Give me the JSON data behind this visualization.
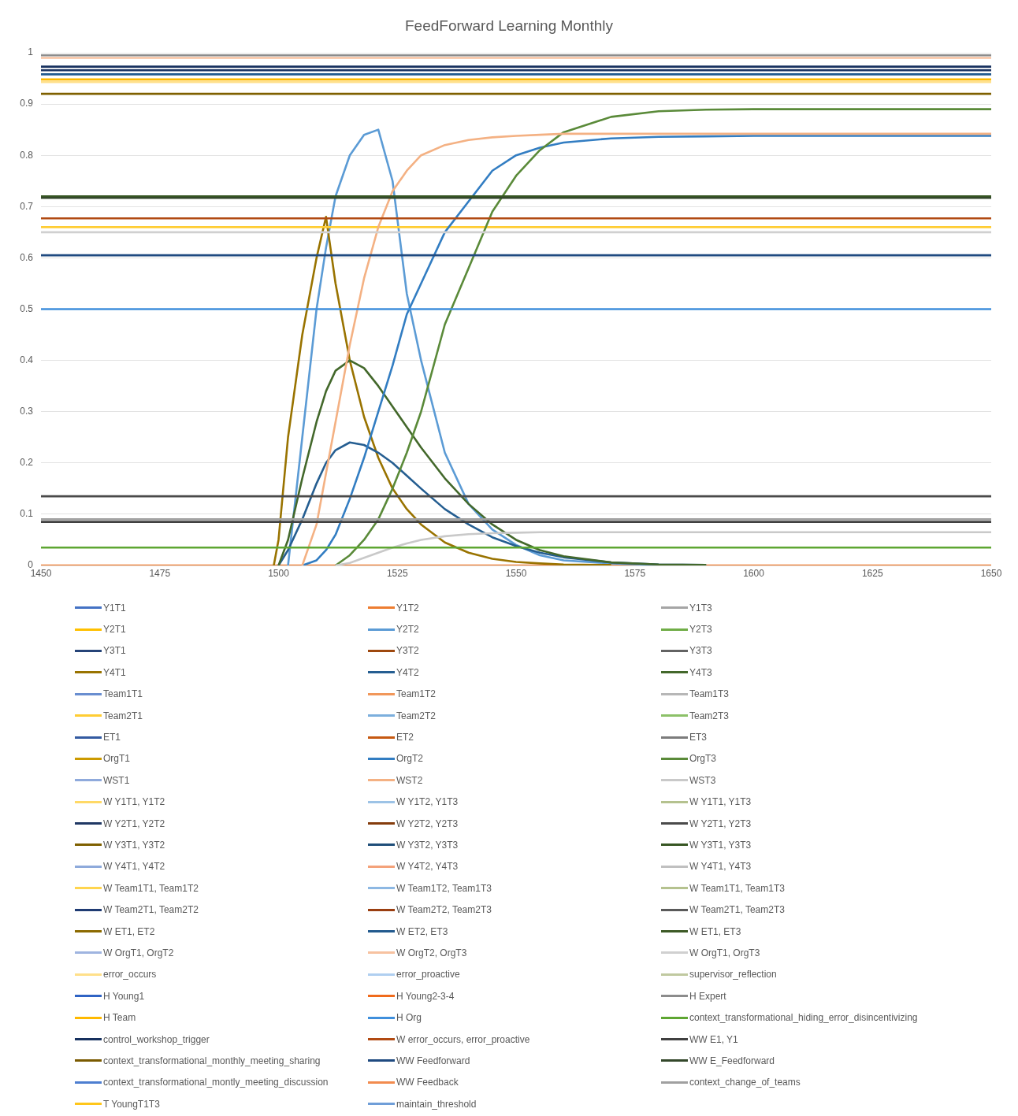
{
  "chart_data": {
    "type": "line",
    "title": "FeedForward Learning Monthly",
    "x": [
      1450,
      1499,
      1500,
      1502,
      1505,
      1508,
      1510,
      1512,
      1515,
      1518,
      1521,
      1524,
      1527,
      1530,
      1535,
      1540,
      1545,
      1550,
      1555,
      1560,
      1570,
      1580,
      1590,
      1600,
      1625,
      1650
    ],
    "xlim": [
      1450,
      1650
    ],
    "xticks": [
      1450,
      1475,
      1500,
      1525,
      1550,
      1575,
      1600,
      1625,
      1650
    ],
    "ylim": [
      0,
      1
    ],
    "yticks": [
      0,
      0.1,
      0.2,
      0.3,
      0.4,
      0.5,
      0.6,
      0.7,
      0.8,
      0.9,
      1
    ],
    "grid": "y",
    "legend": "bottom",
    "marker": "none",
    "series": [
      {
        "name": "Y1T1",
        "color": "#4472c4",
        "values": [
          null,
          null,
          null,
          null,
          null,
          null,
          null,
          null,
          null,
          null,
          null,
          null,
          null,
          null,
          null,
          null,
          null,
          null,
          null,
          null,
          null,
          null,
          null,
          null,
          null,
          null
        ]
      },
      {
        "name": "Y1T2",
        "color": "#ed7d31",
        "values": [
          0,
          0,
          0,
          0,
          0,
          0,
          0,
          0,
          0,
          0,
          0,
          0,
          0,
          0,
          0,
          0,
          0,
          0,
          0,
          0,
          0,
          0,
          0,
          0,
          0,
          0
        ]
      },
      {
        "name": "Y1T3",
        "color": "#a5a5a5",
        "values": [
          null,
          null,
          null,
          null,
          null,
          null,
          null,
          null,
          null,
          null,
          null,
          null,
          null,
          null,
          null,
          null,
          null,
          null,
          null,
          null,
          null,
          null,
          null,
          null,
          null,
          null
        ]
      },
      {
        "name": "Y2T1",
        "color": "#ffc000",
        "values": [
          null,
          null,
          null,
          null,
          null,
          null,
          null,
          null,
          null,
          null,
          null,
          null,
          null,
          null,
          null,
          null,
          null,
          null,
          null,
          null,
          null,
          null,
          null,
          null,
          null,
          null
        ]
      },
      {
        "name": "Y2T2",
        "color": "#5b9bd5",
        "values": [
          null,
          null,
          null,
          0,
          0.25,
          0.5,
          0.62,
          0.72,
          0.8,
          0.84,
          0.85,
          0.75,
          0.53,
          0.4,
          0.22,
          0.12,
          0.07,
          0.04,
          0.02,
          0.01,
          0.004,
          0.001,
          null,
          null,
          null,
          null
        ]
      },
      {
        "name": "Y2T3",
        "color": "#70ad47",
        "values": [
          null,
          null,
          null,
          null,
          null,
          null,
          null,
          null,
          null,
          null,
          null,
          null,
          null,
          null,
          null,
          null,
          null,
          null,
          null,
          null,
          null,
          null,
          null,
          null,
          null,
          null
        ]
      },
      {
        "name": "Y3T1",
        "color": "#264478",
        "values": [
          null,
          null,
          null,
          null,
          null,
          null,
          null,
          null,
          null,
          null,
          null,
          null,
          null,
          null,
          null,
          null,
          null,
          null,
          null,
          null,
          null,
          null,
          null,
          null,
          null,
          null
        ]
      },
      {
        "name": "Y3T2",
        "color": "#9e480e",
        "values": [
          null,
          null,
          null,
          null,
          null,
          null,
          null,
          null,
          null,
          null,
          null,
          null,
          null,
          null,
          null,
          null,
          null,
          null,
          null,
          null,
          null,
          null,
          null,
          null,
          null,
          null
        ]
      },
      {
        "name": "Y3T3",
        "color": "#636363",
        "values": [
          null,
          null,
          null,
          null,
          null,
          null,
          null,
          null,
          null,
          null,
          null,
          null,
          null,
          null,
          null,
          null,
          null,
          null,
          null,
          null,
          null,
          null,
          null,
          null,
          null,
          null
        ]
      },
      {
        "name": "Y4T1",
        "color": "#997300",
        "values": [
          null,
          0,
          0.05,
          0.25,
          0.45,
          0.6,
          0.68,
          0.55,
          0.4,
          0.29,
          0.21,
          0.15,
          0.11,
          0.08,
          0.045,
          0.025,
          0.013,
          0.007,
          0.004,
          0.002,
          0.001,
          null,
          null,
          null,
          null,
          null
        ]
      },
      {
        "name": "Y4T2",
        "color": "#255e91",
        "values": [
          null,
          null,
          0,
          0.03,
          0.09,
          0.16,
          0.2,
          0.225,
          0.24,
          0.235,
          0.22,
          0.2,
          0.175,
          0.15,
          0.11,
          0.08,
          0.055,
          0.038,
          0.025,
          0.016,
          0.006,
          0.002,
          0.001,
          null,
          null,
          null
        ]
      },
      {
        "name": "Y4T3",
        "color": "#43682b",
        "values": [
          null,
          null,
          0,
          0.05,
          0.17,
          0.28,
          0.34,
          0.38,
          0.4,
          0.385,
          0.35,
          0.31,
          0.27,
          0.23,
          0.17,
          0.12,
          0.08,
          0.05,
          0.03,
          0.018,
          0.006,
          0.002,
          0.001,
          null,
          null,
          null
        ]
      },
      {
        "name": "Team1T1",
        "color": "#698ed0",
        "values": [
          null,
          null,
          null,
          null,
          null,
          null,
          null,
          null,
          null,
          null,
          null,
          null,
          null,
          null,
          null,
          null,
          null,
          null,
          null,
          null,
          null,
          null,
          null,
          null,
          null,
          null
        ]
      },
      {
        "name": "Team1T2",
        "color": "#f1975a",
        "values": [
          null,
          null,
          null,
          null,
          null,
          null,
          null,
          null,
          null,
          null,
          null,
          null,
          null,
          null,
          null,
          null,
          null,
          null,
          null,
          null,
          null,
          null,
          null,
          null,
          null,
          null
        ]
      },
      {
        "name": "Team1T3",
        "color": "#b7b7b7",
        "values": [
          null,
          null,
          null,
          null,
          null,
          null,
          null,
          null,
          null,
          null,
          null,
          null,
          null,
          null,
          null,
          null,
          null,
          null,
          null,
          null,
          null,
          null,
          null,
          null,
          null,
          null
        ]
      },
      {
        "name": "Team2T1",
        "color": "#ffcd33",
        "values": [
          0.66,
          0.66,
          0.66,
          0.66,
          0.66,
          0.66,
          0.66,
          0.66,
          0.66,
          0.66,
          0.66,
          0.66,
          0.66,
          0.66,
          0.66,
          0.66,
          0.66,
          0.66,
          0.66,
          0.66,
          0.66,
          0.66,
          0.66,
          0.66,
          0.66,
          0.66
        ]
      },
      {
        "name": "Team2T2",
        "color": "#7cafdd",
        "values": [
          null,
          null,
          null,
          null,
          null,
          null,
          null,
          null,
          null,
          null,
          null,
          null,
          null,
          null,
          null,
          null,
          null,
          null,
          null,
          null,
          null,
          null,
          null,
          null,
          null,
          null
        ]
      },
      {
        "name": "Team2T3",
        "color": "#8cc168",
        "values": [
          null,
          null,
          null,
          null,
          null,
          null,
          null,
          null,
          null,
          null,
          null,
          null,
          null,
          null,
          null,
          null,
          null,
          null,
          null,
          null,
          null,
          null,
          null,
          null,
          null,
          null
        ]
      },
      {
        "name": "ET1",
        "color": "#335aa1",
        "values": [
          null,
          null,
          null,
          null,
          null,
          null,
          null,
          null,
          null,
          null,
          null,
          null,
          null,
          null,
          null,
          null,
          null,
          null,
          null,
          null,
          null,
          null,
          null,
          null,
          null,
          null
        ]
      },
      {
        "name": "ET2",
        "color": "#c65911",
        "values": [
          null,
          null,
          null,
          null,
          null,
          null,
          null,
          null,
          null,
          null,
          null,
          null,
          null,
          null,
          null,
          null,
          null,
          null,
          null,
          null,
          null,
          null,
          null,
          null,
          null,
          null
        ]
      },
      {
        "name": "ET3",
        "color": "#7c7c7c",
        "values": [
          null,
          null,
          null,
          null,
          null,
          null,
          null,
          null,
          null,
          null,
          null,
          null,
          null,
          null,
          null,
          null,
          null,
          null,
          null,
          null,
          null,
          null,
          null,
          null,
          null,
          null
        ]
      },
      {
        "name": "OrgT1",
        "color": "#cc9a00",
        "values": [
          null,
          null,
          null,
          null,
          null,
          null,
          null,
          null,
          null,
          null,
          null,
          null,
          null,
          null,
          null,
          null,
          null,
          null,
          null,
          null,
          null,
          null,
          null,
          null,
          null,
          null
        ]
      },
      {
        "name": "OrgT2",
        "color": "#327dc2",
        "values": [
          null,
          null,
          null,
          null,
          0,
          0.01,
          0.03,
          0.06,
          0.13,
          0.21,
          0.3,
          0.39,
          0.49,
          0.55,
          0.65,
          0.71,
          0.77,
          0.8,
          0.815,
          0.825,
          0.833,
          0.836,
          0.837,
          0.838,
          0.838,
          0.838
        ]
      },
      {
        "name": "OrgT3",
        "color": "#5a8a39",
        "values": [
          null,
          null,
          null,
          null,
          null,
          null,
          null,
          0,
          0.02,
          0.05,
          0.09,
          0.15,
          0.22,
          0.3,
          0.47,
          0.58,
          0.69,
          0.76,
          0.81,
          0.845,
          0.875,
          0.886,
          0.889,
          0.89,
          0.89,
          0.89
        ]
      },
      {
        "name": "WST1",
        "color": "#8faadc",
        "values": [
          null,
          null,
          null,
          null,
          null,
          null,
          null,
          null,
          null,
          null,
          null,
          null,
          null,
          null,
          null,
          null,
          null,
          null,
          null,
          null,
          null,
          null,
          null,
          null,
          null,
          null
        ]
      },
      {
        "name": "WST2",
        "color": "#f4b183",
        "values": [
          null,
          null,
          null,
          null,
          0,
          0.08,
          0.18,
          0.28,
          0.43,
          0.56,
          0.66,
          0.73,
          0.77,
          0.8,
          0.82,
          0.83,
          0.835,
          0.838,
          0.84,
          0.842,
          0.842,
          0.842,
          0.842,
          0.842,
          0.842,
          0.842
        ]
      },
      {
        "name": "WST3",
        "color": "#c9c9c9",
        "values": [
          null,
          null,
          null,
          null,
          null,
          null,
          null,
          0,
          0.005,
          0.015,
          0.025,
          0.035,
          0.043,
          0.05,
          0.057,
          0.061,
          0.063,
          0.064,
          0.065,
          0.065,
          0.065,
          0.065,
          0.065,
          0.065,
          0.065,
          0.065
        ]
      },
      {
        "name": "W Y1T1, Y1T2",
        "color": "#ffd966",
        "values": [
          null,
          null,
          null,
          null,
          null,
          null,
          null,
          null,
          null,
          null,
          null,
          null,
          null,
          null,
          null,
          null,
          null,
          null,
          null,
          null,
          null,
          null,
          null,
          null,
          null,
          null
        ]
      },
      {
        "name": "W Y1T2, Y1T3",
        "color": "#9dc3e6",
        "values": [
          null,
          null,
          null,
          null,
          null,
          null,
          null,
          null,
          null,
          null,
          null,
          null,
          null,
          null,
          null,
          null,
          null,
          null,
          null,
          null,
          null,
          null,
          null,
          null,
          null,
          null
        ]
      },
      {
        "name": "W Y1T1, Y1T3",
        "color": "#b5c28f",
        "values": [
          null,
          null,
          null,
          null,
          null,
          null,
          null,
          null,
          null,
          null,
          null,
          null,
          null,
          null,
          null,
          null,
          null,
          null,
          null,
          null,
          null,
          null,
          null,
          null,
          null,
          null
        ]
      },
      {
        "name": "W Y2T1, Y2T2",
        "color": "#203864",
        "values": [
          0.966,
          0.966,
          0.966,
          0.966,
          0.966,
          0.966,
          0.966,
          0.966,
          0.966,
          0.966,
          0.966,
          0.966,
          0.966,
          0.966,
          0.966,
          0.966,
          0.966,
          0.966,
          0.966,
          0.966,
          0.966,
          0.966,
          0.966,
          0.966,
          0.966,
          0.966
        ]
      },
      {
        "name": "W Y2T2, Y2T3",
        "color": "#843c0c",
        "values": [
          null,
          null,
          null,
          null,
          null,
          null,
          null,
          null,
          null,
          null,
          null,
          null,
          null,
          null,
          null,
          null,
          null,
          null,
          null,
          null,
          null,
          null,
          null,
          null,
          null,
          null
        ]
      },
      {
        "name": "W Y2T1, Y2T3",
        "color": "#4a4a4a",
        "values": [
          0.135,
          0.135,
          0.135,
          0.135,
          0.135,
          0.135,
          0.135,
          0.135,
          0.135,
          0.135,
          0.135,
          0.135,
          0.135,
          0.135,
          0.135,
          0.135,
          0.135,
          0.135,
          0.135,
          0.135,
          0.135,
          0.135,
          0.135,
          0.135,
          0.135,
          0.135
        ]
      },
      {
        "name": "W Y3T1, Y3T2",
        "color": "#7f6000",
        "values": [
          0.92,
          0.92,
          0.92,
          0.92,
          0.92,
          0.92,
          0.92,
          0.92,
          0.92,
          0.92,
          0.92,
          0.92,
          0.92,
          0.92,
          0.92,
          0.92,
          0.92,
          0.92,
          0.92,
          0.92,
          0.92,
          0.92,
          0.92,
          0.92,
          0.92,
          0.92
        ]
      },
      {
        "name": "W Y3T2, Y3T3",
        "color": "#1f4e79",
        "values": [
          null,
          null,
          null,
          null,
          null,
          null,
          null,
          null,
          null,
          null,
          null,
          null,
          null,
          null,
          null,
          null,
          null,
          null,
          null,
          null,
          null,
          null,
          null,
          null,
          null,
          null
        ]
      },
      {
        "name": "W Y3T1, Y3T3",
        "color": "#375623",
        "values": [
          0.72,
          0.72,
          0.72,
          0.72,
          0.72,
          0.72,
          0.72,
          0.72,
          0.72,
          0.72,
          0.72,
          0.72,
          0.72,
          0.72,
          0.72,
          0.72,
          0.72,
          0.72,
          0.72,
          0.72,
          0.72,
          0.72,
          0.72,
          0.72,
          0.72,
          0.72
        ]
      },
      {
        "name": "W Y4T1, Y4T2",
        "color": "#8eaadb",
        "values": [
          null,
          null,
          null,
          null,
          null,
          null,
          null,
          null,
          null,
          null,
          null,
          null,
          null,
          null,
          null,
          null,
          null,
          null,
          null,
          null,
          null,
          null,
          null,
          null,
          null,
          null
        ]
      },
      {
        "name": "W Y4T2, Y4T3",
        "color": "#f4a27a",
        "values": [
          null,
          null,
          null,
          null,
          null,
          null,
          null,
          null,
          null,
          null,
          null,
          null,
          null,
          null,
          null,
          null,
          null,
          null,
          null,
          null,
          null,
          null,
          null,
          null,
          null,
          null
        ]
      },
      {
        "name": "W Y4T1, Y4T3",
        "color": "#c0c0c0",
        "values": [
          null,
          null,
          null,
          null,
          null,
          null,
          null,
          null,
          null,
          null,
          null,
          null,
          null,
          null,
          null,
          null,
          null,
          null,
          null,
          null,
          null,
          null,
          null,
          null,
          null,
          null
        ]
      },
      {
        "name": "W Team1T1, Team1T2",
        "color": "#ffd54f",
        "values": [
          null,
          null,
          null,
          null,
          null,
          null,
          null,
          null,
          null,
          null,
          null,
          null,
          null,
          null,
          null,
          null,
          null,
          null,
          null,
          null,
          null,
          null,
          null,
          null,
          null,
          null
        ]
      },
      {
        "name": "W Team1T2, Team1T3",
        "color": "#8db8e3",
        "values": [
          null,
          null,
          null,
          null,
          null,
          null,
          null,
          null,
          null,
          null,
          null,
          null,
          null,
          null,
          null,
          null,
          null,
          null,
          null,
          null,
          null,
          null,
          null,
          null,
          null,
          null
        ]
      },
      {
        "name": "W Team1T1, Team1T3",
        "color": "#b5c28f",
        "values": [
          null,
          null,
          null,
          null,
          null,
          null,
          null,
          null,
          null,
          null,
          null,
          null,
          null,
          null,
          null,
          null,
          null,
          null,
          null,
          null,
          null,
          null,
          null,
          null,
          null,
          null
        ]
      },
      {
        "name": "W Team2T1, Team2T2",
        "color": "#1f3b73",
        "values": [
          null,
          null,
          null,
          null,
          null,
          null,
          null,
          null,
          null,
          null,
          null,
          null,
          null,
          null,
          null,
          null,
          null,
          null,
          null,
          null,
          null,
          null,
          null,
          null,
          null,
          null
        ]
      },
      {
        "name": "W Team2T2, Team2T3",
        "color": "#9a3e10",
        "values": [
          null,
          null,
          null,
          null,
          null,
          null,
          null,
          null,
          null,
          null,
          null,
          null,
          null,
          null,
          null,
          null,
          null,
          null,
          null,
          null,
          null,
          null,
          null,
          null,
          null,
          null
        ]
      },
      {
        "name": "W Team2T1, Team2T3",
        "color": "#5a5a5a",
        "values": [
          null,
          null,
          null,
          null,
          null,
          null,
          null,
          null,
          null,
          null,
          null,
          null,
          null,
          null,
          null,
          null,
          null,
          null,
          null,
          null,
          null,
          null,
          null,
          null,
          null,
          null
        ]
      },
      {
        "name": "W ET1, ET2",
        "color": "#8c6a00",
        "values": [
          null,
          null,
          null,
          null,
          null,
          null,
          null,
          null,
          null,
          null,
          null,
          null,
          null,
          null,
          null,
          null,
          null,
          null,
          null,
          null,
          null,
          null,
          null,
          null,
          null,
          null
        ]
      },
      {
        "name": "W ET2, ET3",
        "color": "#225a8e",
        "values": [
          0.958,
          0.958,
          0.958,
          0.958,
          0.958,
          0.958,
          0.958,
          0.958,
          0.958,
          0.958,
          0.958,
          0.958,
          0.958,
          0.958,
          0.958,
          0.958,
          0.958,
          0.958,
          0.958,
          0.958,
          0.958,
          0.958,
          0.958,
          0.958,
          0.958,
          0.958
        ]
      },
      {
        "name": "W ET1, ET3",
        "color": "#3d5a26",
        "values": [
          null,
          null,
          null,
          null,
          null,
          null,
          null,
          null,
          null,
          null,
          null,
          null,
          null,
          null,
          null,
          null,
          null,
          null,
          null,
          null,
          null,
          null,
          null,
          null,
          null,
          null
        ]
      },
      {
        "name": "W OrgT1, OrgT2",
        "color": "#9fb4e0",
        "values": [
          null,
          null,
          null,
          null,
          null,
          null,
          null,
          null,
          null,
          null,
          null,
          null,
          null,
          null,
          null,
          null,
          null,
          null,
          null,
          null,
          null,
          null,
          null,
          null,
          null,
          null
        ]
      },
      {
        "name": "W OrgT2, OrgT3",
        "color": "#f7c2a0",
        "values": [
          0.99,
          0.99,
          0.99,
          0.99,
          0.99,
          0.99,
          0.99,
          0.99,
          0.99,
          0.99,
          0.99,
          0.99,
          0.99,
          0.99,
          0.99,
          0.99,
          0.99,
          0.99,
          0.99,
          0.99,
          0.99,
          0.99,
          0.99,
          0.99,
          0.99,
          0.99
        ]
      },
      {
        "name": "W OrgT1, OrgT3",
        "color": "#d0d0d0",
        "values": [
          0.65,
          0.65,
          0.65,
          0.65,
          0.65,
          0.65,
          0.65,
          0.65,
          0.65,
          0.65,
          0.65,
          0.65,
          0.65,
          0.65,
          0.65,
          0.65,
          0.65,
          0.65,
          0.65,
          0.65,
          0.65,
          0.65,
          0.65,
          0.65,
          0.65,
          0.65
        ]
      },
      {
        "name": "error_occurs",
        "color": "#ffe08a",
        "values": [
          0.943,
          0.943,
          0.943,
          0.943,
          0.943,
          0.943,
          0.943,
          0.943,
          0.943,
          0.943,
          0.943,
          0.943,
          0.943,
          0.943,
          0.943,
          0.943,
          0.943,
          0.943,
          0.943,
          0.943,
          0.943,
          0.943,
          0.943,
          0.943,
          0.943,
          0.943
        ]
      },
      {
        "name": "error_proactive",
        "color": "#b0cff0",
        "values": [
          null,
          null,
          null,
          null,
          null,
          null,
          null,
          null,
          null,
          null,
          null,
          null,
          null,
          null,
          null,
          null,
          null,
          null,
          null,
          null,
          null,
          null,
          null,
          null,
          null,
          null
        ]
      },
      {
        "name": "supervisor_reflection",
        "color": "#c0c9a0",
        "values": [
          null,
          null,
          null,
          null,
          null,
          null,
          null,
          null,
          null,
          null,
          null,
          null,
          null,
          null,
          null,
          null,
          null,
          null,
          null,
          null,
          null,
          null,
          null,
          null,
          null,
          null
        ]
      },
      {
        "name": "H Young1",
        "color": "#2f63c4",
        "values": [
          null,
          null,
          null,
          null,
          null,
          null,
          null,
          null,
          null,
          null,
          null,
          null,
          null,
          null,
          null,
          null,
          null,
          null,
          null,
          null,
          null,
          null,
          null,
          null,
          null,
          null
        ]
      },
      {
        "name": "H Young2-3-4",
        "color": "#f06b1c",
        "values": [
          null,
          null,
          null,
          null,
          null,
          null,
          null,
          null,
          null,
          null,
          null,
          null,
          null,
          null,
          null,
          null,
          null,
          null,
          null,
          null,
          null,
          null,
          null,
          null,
          null,
          null
        ]
      },
      {
        "name": "H Expert",
        "color": "#8c8c8c",
        "values": [
          0.995,
          0.995,
          0.995,
          0.995,
          0.995,
          0.995,
          0.995,
          0.995,
          0.995,
          0.995,
          0.995,
          0.995,
          0.995,
          0.995,
          0.995,
          0.995,
          0.995,
          0.995,
          0.995,
          0.995,
          0.995,
          0.995,
          0.995,
          0.995,
          0.995,
          0.995
        ]
      },
      {
        "name": "H Team",
        "color": "#ffb900",
        "values": [
          0.948,
          0.948,
          0.948,
          0.948,
          0.948,
          0.948,
          0.948,
          0.948,
          0.948,
          0.948,
          0.948,
          0.948,
          0.948,
          0.948,
          0.948,
          0.948,
          0.948,
          0.948,
          0.948,
          0.948,
          0.948,
          0.948,
          0.948,
          0.948,
          0.948,
          0.948
        ]
      },
      {
        "name": "H Org",
        "color": "#3f8fdc",
        "values": [
          0.5,
          0.5,
          0.5,
          0.5,
          0.5,
          0.5,
          0.5,
          0.5,
          0.5,
          0.5,
          0.5,
          0.5,
          0.5,
          0.5,
          0.5,
          0.5,
          0.5,
          0.5,
          0.5,
          0.5,
          0.5,
          0.5,
          0.5,
          0.5,
          0.5,
          0.5
        ]
      },
      {
        "name": "context_transformational_hiding_error_disincentivizing",
        "color": "#5ea632",
        "values": [
          0.035,
          0.035,
          0.035,
          0.035,
          0.035,
          0.035,
          0.035,
          0.035,
          0.035,
          0.035,
          0.035,
          0.035,
          0.035,
          0.035,
          0.035,
          0.035,
          0.035,
          0.035,
          0.035,
          0.035,
          0.035,
          0.035,
          0.035,
          0.035,
          0.035,
          0.035
        ]
      },
      {
        "name": "control_workshop_trigger",
        "color": "#16305e",
        "values": [
          0.973,
          0.973,
          0.973,
          0.973,
          0.973,
          0.973,
          0.973,
          0.973,
          0.973,
          0.973,
          0.973,
          0.973,
          0.973,
          0.973,
          0.973,
          0.973,
          0.973,
          0.973,
          0.973,
          0.973,
          0.973,
          0.973,
          0.973,
          0.973,
          0.973,
          0.973
        ]
      },
      {
        "name": "W error_occurs, error_proactive",
        "color": "#b14a12",
        "values": [
          0.677,
          0.677,
          0.677,
          0.677,
          0.677,
          0.677,
          0.677,
          0.677,
          0.677,
          0.677,
          0.677,
          0.677,
          0.677,
          0.677,
          0.677,
          0.677,
          0.677,
          0.677,
          0.677,
          0.677,
          0.677,
          0.677,
          0.677,
          0.677,
          0.677,
          0.677
        ]
      },
      {
        "name": "WW E1, Y1",
        "color": "#404040",
        "values": [
          0.085,
          0.085,
          0.085,
          0.085,
          0.085,
          0.085,
          0.085,
          0.085,
          0.085,
          0.085,
          0.085,
          0.085,
          0.085,
          0.085,
          0.085,
          0.085,
          0.085,
          0.085,
          0.085,
          0.085,
          0.085,
          0.085,
          0.085,
          0.085,
          0.085,
          0.085
        ]
      },
      {
        "name": "context_transformational_monthly_meeting_sharing",
        "color": "#7a5a00",
        "values": [
          null,
          null,
          null,
          null,
          null,
          null,
          null,
          null,
          null,
          null,
          null,
          null,
          null,
          null,
          null,
          null,
          null,
          null,
          null,
          null,
          null,
          null,
          null,
          null,
          null,
          null
        ]
      },
      {
        "name": "WW Feedforward",
        "color": "#1f4a80",
        "values": [
          0.605,
          0.605,
          0.605,
          0.605,
          0.605,
          0.605,
          0.605,
          0.605,
          0.605,
          0.605,
          0.605,
          0.605,
          0.605,
          0.605,
          0.605,
          0.605,
          0.605,
          0.605,
          0.605,
          0.605,
          0.605,
          0.605,
          0.605,
          0.605,
          0.605,
          0.605
        ]
      },
      {
        "name": "WW E_Feedforward",
        "color": "#33472a",
        "values": [
          0.717,
          0.717,
          0.717,
          0.717,
          0.717,
          0.717,
          0.717,
          0.717,
          0.717,
          0.717,
          0.717,
          0.717,
          0.717,
          0.717,
          0.717,
          0.717,
          0.717,
          0.717,
          0.717,
          0.717,
          0.717,
          0.717,
          0.717,
          0.717,
          0.717,
          0.717
        ]
      },
      {
        "name": "context_transformational_montly_meeting_discussion",
        "color": "#4d7ed0",
        "values": [
          null,
          null,
          null,
          null,
          null,
          null,
          null,
          null,
          null,
          null,
          null,
          null,
          null,
          null,
          null,
          null,
          null,
          null,
          null,
          null,
          null,
          null,
          null,
          null,
          null,
          null
        ]
      },
      {
        "name": "WW Feedback",
        "color": "#f28b4e",
        "values": [
          null,
          null,
          null,
          null,
          null,
          null,
          null,
          null,
          null,
          null,
          null,
          null,
          null,
          null,
          null,
          null,
          null,
          null,
          null,
          null,
          null,
          null,
          null,
          null,
          null,
          null
        ]
      },
      {
        "name": "context_change_of_teams",
        "color": "#a0a0a0",
        "values": [
          0.09,
          0.09,
          0.09,
          0.09,
          0.09,
          0.09,
          0.09,
          0.09,
          0.09,
          0.09,
          0.09,
          0.09,
          0.09,
          0.09,
          0.09,
          0.09,
          0.09,
          0.09,
          0.09,
          0.09,
          0.09,
          0.09,
          0.09,
          0.09,
          0.09,
          0.09
        ]
      },
      {
        "name": "T YoungT1T3",
        "color": "#ffc61a",
        "values": [
          null,
          null,
          null,
          null,
          null,
          null,
          null,
          null,
          null,
          null,
          null,
          null,
          null,
          null,
          null,
          null,
          null,
          null,
          null,
          null,
          null,
          null,
          null,
          null,
          null,
          null
        ]
      },
      {
        "name": "maintain_threshold",
        "color": "#6f9ed8",
        "values": [
          null,
          null,
          null,
          null,
          null,
          null,
          null,
          null,
          null,
          null,
          null,
          null,
          null,
          null,
          null,
          null,
          null,
          null,
          null,
          null,
          null,
          null,
          null,
          null,
          null,
          null
        ]
      }
    ]
  }
}
